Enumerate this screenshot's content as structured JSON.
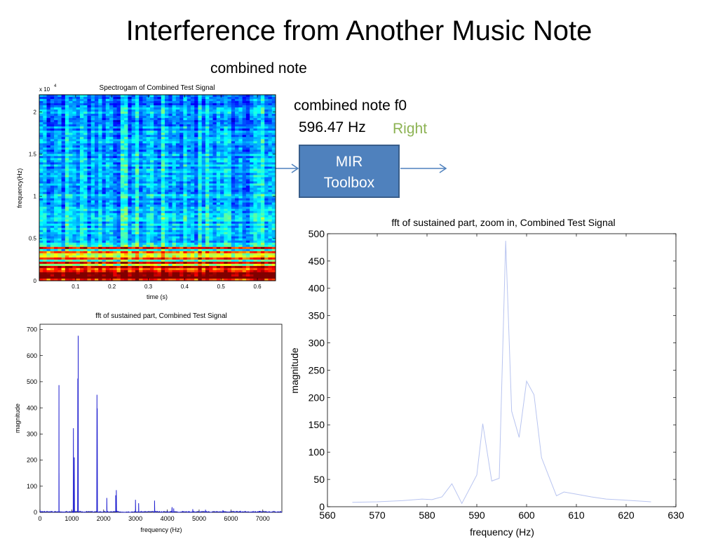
{
  "slide": {
    "title": "Interference from Another Music Note",
    "caption": "combined note",
    "f0_label": "combined note f0",
    "f0_value": "596.47 Hz",
    "verdict": "Right",
    "verdict_color": "#8db354",
    "box_line1": "MIR",
    "box_line2": "Toolbox",
    "box_color": "#4f81bd"
  },
  "chart_data": [
    {
      "type": "heatmap",
      "title": "Spectrogam of Combined Test Signal",
      "xlabel": "time (s)",
      "ylabel": "frequency(Hz)",
      "y_exponent_label": "x 10",
      "y_exponent": "4",
      "xlim": [
        0,
        0.65
      ],
      "ylim": [
        0,
        22050
      ],
      "x_ticks": [
        0.1,
        0.2,
        0.3,
        0.4,
        0.5,
        0.6
      ],
      "x_tick_labels": [
        "0.1",
        "0.2",
        "0.3",
        "0.4",
        "0.5",
        "0.6"
      ],
      "y_ticks": [
        0,
        5000,
        10000,
        15000,
        20000
      ],
      "y_tick_labels": [
        "0",
        "0.5",
        "1",
        "1.5",
        "2"
      ],
      "colormap": "jet"
    },
    {
      "type": "line",
      "title": "fft of sustained part, Combined Test Signal",
      "xlabel": "frequency (Hz)",
      "ylabel": "magnitude",
      "xlim": [
        0,
        7600
      ],
      "ylim": [
        0,
        720
      ],
      "x_ticks": [
        0,
        1000,
        2000,
        3000,
        4000,
        5000,
        6000,
        7000
      ],
      "x_tick_labels": [
        "0",
        "1000",
        "2000",
        "3000",
        "4000",
        "5000",
        "6000",
        "7000"
      ],
      "y_ticks": [
        0,
        100,
        200,
        300,
        400,
        500,
        600,
        700
      ],
      "y_tick_labels": [
        "0",
        "100",
        "200",
        "300",
        "400",
        "500",
        "600",
        "700"
      ],
      "line_color": "#1f1fd0",
      "peaks": [
        {
          "x": 596,
          "y": 487
        },
        {
          "x": 600,
          "y": 150
        },
        {
          "x": 1050,
          "y": 322
        },
        {
          "x": 1080,
          "y": 210
        },
        {
          "x": 1190,
          "y": 512
        },
        {
          "x": 1200,
          "y": 676
        },
        {
          "x": 1790,
          "y": 450
        },
        {
          "x": 1800,
          "y": 398
        },
        {
          "x": 2100,
          "y": 55
        },
        {
          "x": 2380,
          "y": 65
        },
        {
          "x": 2400,
          "y": 85
        },
        {
          "x": 3000,
          "y": 48
        },
        {
          "x": 3100,
          "y": 35
        },
        {
          "x": 3600,
          "y": 45
        },
        {
          "x": 4150,
          "y": 20
        },
        {
          "x": 4200,
          "y": 15
        },
        {
          "x": 4800,
          "y": 12
        },
        {
          "x": 5200,
          "y": 10
        },
        {
          "x": 5750,
          "y": 8
        },
        {
          "x": 6300,
          "y": 6
        },
        {
          "x": 6900,
          "y": 5
        }
      ]
    },
    {
      "type": "line",
      "title": "fft of sustained part, zoom in, Combined Test Signal",
      "xlabel": "frequency (Hz)",
      "ylabel": "magnitude",
      "xlim": [
        560,
        630
      ],
      "ylim": [
        0,
        500
      ],
      "x_ticks": [
        560,
        570,
        580,
        590,
        600,
        610,
        620,
        630
      ],
      "x_tick_labels": [
        "560",
        "570",
        "580",
        "590",
        "600",
        "610",
        "620",
        "630"
      ],
      "y_ticks": [
        0,
        50,
        100,
        150,
        200,
        250,
        300,
        350,
        400,
        450,
        500
      ],
      "y_tick_labels": [
        "0",
        "50",
        "100",
        "150",
        "200",
        "250",
        "300",
        "350",
        "400",
        "450",
        "500"
      ],
      "line_color": "#b8c4f0",
      "x": [
        565,
        570,
        575,
        579,
        581,
        583,
        585,
        587,
        590,
        591.2,
        593,
        594.5,
        595.8,
        597,
        598.5,
        600,
        601.5,
        603,
        604.5,
        606,
        607.5,
        610,
        613,
        616,
        620,
        625
      ],
      "y": [
        8,
        9,
        11,
        14,
        13,
        18,
        42,
        6,
        58,
        152,
        47,
        52,
        487,
        175,
        127,
        230,
        205,
        90,
        55,
        20,
        27,
        23,
        18,
        14,
        12,
        9
      ]
    }
  ]
}
